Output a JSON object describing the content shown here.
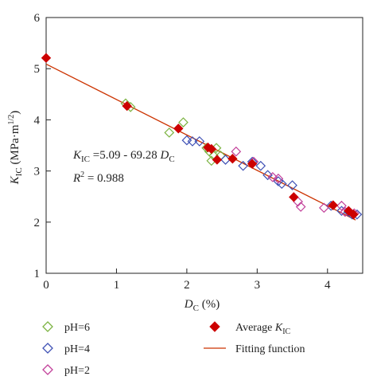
{
  "chart_data": {
    "type": "scatter",
    "xlabel": {
      "main": "D",
      "sub": "C",
      "unit": " (%)"
    },
    "ylabel": {
      "main": "K",
      "sub": "IC",
      "unit_open": " (MPa·m",
      "unit_sup": "1/2",
      "unit_close": ")"
    },
    "xlim": [
      0,
      4.5
    ],
    "ylim": [
      1,
      6
    ],
    "xticks": [
      0,
      1,
      2,
      3,
      4
    ],
    "yticks": [
      1,
      2,
      3,
      4,
      5,
      6
    ],
    "grid": false,
    "legend_position": "bottom",
    "equation": {
      "line1": {
        "k": "K",
        "ksub": "IC",
        "mid": " =5.09 - 69.28 ",
        "d": "D",
        "dsub": "C"
      },
      "line2": {
        "r": "R",
        "sup": "2",
        "rest": " = 0.988"
      }
    },
    "fit": {
      "intercept": 5.09,
      "slope_per_percent": -0.6928,
      "x_range": [
        0,
        4.4
      ]
    },
    "series": [
      {
        "name": "pH=6",
        "marker": "diamond-open",
        "color": "#7cb342",
        "points": [
          [
            1.13,
            4.32
          ],
          [
            1.2,
            4.25
          ],
          [
            1.75,
            3.75
          ],
          [
            1.95,
            3.95
          ],
          [
            2.28,
            3.45
          ],
          [
            2.32,
            3.38
          ],
          [
            2.35,
            3.2
          ],
          [
            2.38,
            3.3
          ],
          [
            2.42,
            3.45
          ],
          [
            2.48,
            3.3
          ]
        ]
      },
      {
        "name": "pH=4",
        "marker": "diamond-open",
        "color": "#3f51b5",
        "points": [
          [
            2.0,
            3.6
          ],
          [
            2.08,
            3.58
          ],
          [
            2.18,
            3.58
          ],
          [
            2.55,
            3.22
          ],
          [
            2.8,
            3.1
          ],
          [
            2.93,
            3.18
          ],
          [
            3.05,
            3.1
          ],
          [
            3.15,
            2.92
          ],
          [
            3.3,
            2.8
          ],
          [
            3.35,
            2.75
          ],
          [
            3.5,
            2.72
          ],
          [
            4.05,
            2.32
          ],
          [
            4.2,
            2.22
          ],
          [
            4.3,
            2.2
          ],
          [
            4.35,
            2.15
          ],
          [
            4.42,
            2.15
          ]
        ]
      },
      {
        "name": "pH=2",
        "marker": "diamond-open",
        "color": "#c2409a",
        "points": [
          [
            2.7,
            3.38
          ],
          [
            2.95,
            3.18
          ],
          [
            3.22,
            2.88
          ],
          [
            3.3,
            2.85
          ],
          [
            3.58,
            2.4
          ],
          [
            3.62,
            2.3
          ],
          [
            3.95,
            2.28
          ],
          [
            4.2,
            2.32
          ],
          [
            4.25,
            2.2
          ],
          [
            4.38,
            2.17
          ]
        ]
      },
      {
        "name": "Average K_IC",
        "marker": "diamond-filled",
        "color": "#cc0000",
        "points": [
          [
            0,
            5.21
          ],
          [
            1.15,
            4.27
          ],
          [
            1.88,
            3.83
          ],
          [
            2.3,
            3.46
          ],
          [
            2.35,
            3.43
          ],
          [
            2.43,
            3.22
          ],
          [
            2.65,
            3.24
          ],
          [
            2.93,
            3.14
          ],
          [
            3.52,
            2.49
          ],
          [
            4.08,
            2.33
          ],
          [
            4.3,
            2.22
          ],
          [
            4.37,
            2.15
          ]
        ]
      },
      {
        "name": "Fitting function",
        "marker": "line",
        "color": "#cc3300"
      }
    ],
    "legend": [
      {
        "label": "pH=6",
        "marker": "diamond-open",
        "color": "#7cb342"
      },
      {
        "label": "pH=4",
        "marker": "diamond-open",
        "color": "#3f51b5"
      },
      {
        "label": "pH=2",
        "marker": "diamond-open",
        "color": "#c2409a"
      },
      {
        "label_main": "Average ",
        "label_k": "K",
        "label_sub": "IC",
        "marker": "diamond-filled",
        "color": "#cc0000"
      },
      {
        "label": "Fitting function",
        "marker": "line",
        "color": "#cc3300"
      }
    ]
  }
}
